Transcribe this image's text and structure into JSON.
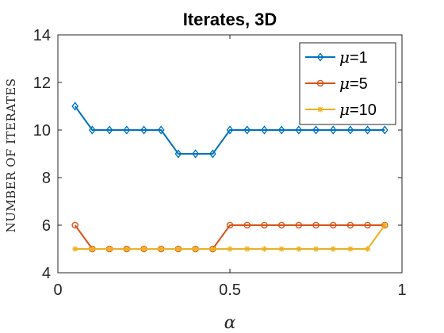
{
  "chart_data": {
    "type": "line",
    "title": "Iterates, 3D",
    "xlabel": "α",
    "ylabel": "NUMBER OF ITERATES",
    "xlim": [
      0,
      1
    ],
    "ylim": [
      4,
      14
    ],
    "xticks": [
      0,
      0.5,
      1
    ],
    "xtick_labels": [
      "0",
      "0.5",
      "1"
    ],
    "yticks": [
      4,
      6,
      8,
      10,
      12,
      14
    ],
    "ytick_labels": [
      "4",
      "6",
      "8",
      "10",
      "12",
      "14"
    ],
    "grid": false,
    "legend_position": "top-right",
    "x": [
      0.05,
      0.1,
      0.15,
      0.2,
      0.25,
      0.3,
      0.35,
      0.4,
      0.45,
      0.5,
      0.55,
      0.6,
      0.65,
      0.7,
      0.75,
      0.8,
      0.85,
      0.9,
      0.95
    ],
    "series": [
      {
        "legend_symbol": "μ",
        "legend_suffix": "=1",
        "color": "#0072BD",
        "marker": "diamond",
        "values": [
          11,
          10,
          10,
          10,
          10,
          10,
          9,
          9,
          9,
          10,
          10,
          10,
          10,
          10,
          10,
          10,
          10,
          10,
          10
        ]
      },
      {
        "legend_symbol": "μ",
        "legend_suffix": "=5",
        "color": "#D95319",
        "marker": "circle",
        "values": [
          6,
          5,
          5,
          5,
          5,
          5,
          5,
          5,
          5,
          6,
          6,
          6,
          6,
          6,
          6,
          6,
          6,
          6,
          6
        ]
      },
      {
        "legend_symbol": "μ",
        "legend_suffix": "=10",
        "color": "#EDB120",
        "marker": "star",
        "values": [
          5,
          5,
          5,
          5,
          5,
          5,
          5,
          5,
          5,
          5,
          5,
          5,
          5,
          5,
          5,
          5,
          5,
          5,
          6
        ]
      }
    ]
  }
}
